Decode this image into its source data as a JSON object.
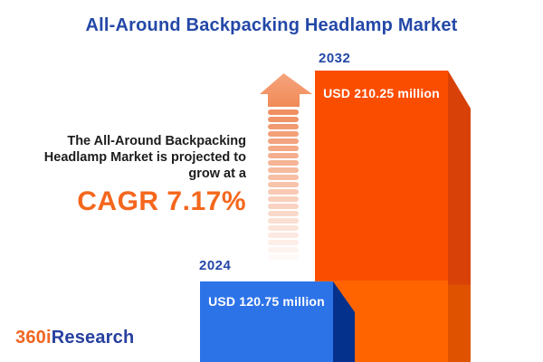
{
  "header": {
    "title": "All-Around Backpacking Headlamp Market"
  },
  "annotation": {
    "line1": "The All-Around Backpacking",
    "line2": "Headlamp Market is projected to",
    "line3": "grow at a",
    "cagr_label": "CAGR 7.17%"
  },
  "chart_data": {
    "type": "bar",
    "title": "All-Around Backpacking Headlamp Market",
    "categories": [
      "2024",
      "2032"
    ],
    "values": [
      120.75,
      210.25
    ],
    "unit": "USD million",
    "value_labels": [
      "USD 120.75 million",
      "USD 210.25 million"
    ],
    "cagr_percent": 7.17,
    "bar_colors": [
      "#2D73E8",
      "#FB4D00"
    ],
    "style": "3d-cuboid-bars",
    "grid": false,
    "legend_position": "none"
  },
  "logo": {
    "part1": "360i",
    "part2": "Research"
  },
  "colors": {
    "title_blue": "#2448A8",
    "cagr_orange": "#F4671D",
    "bar_blue_face": "#2D73E8",
    "bar_blue_side": "#04318B",
    "bar_orange_face_top": "#FB4D00",
    "bar_orange_face_bottom": "#FF6400",
    "bar_orange_side_top": "#D84108",
    "bar_orange_side_bottom": "#DF5300",
    "arrow_salmon": "#F0895A",
    "logo_orange": "#F26522",
    "logo_navy": "#27409F"
  }
}
